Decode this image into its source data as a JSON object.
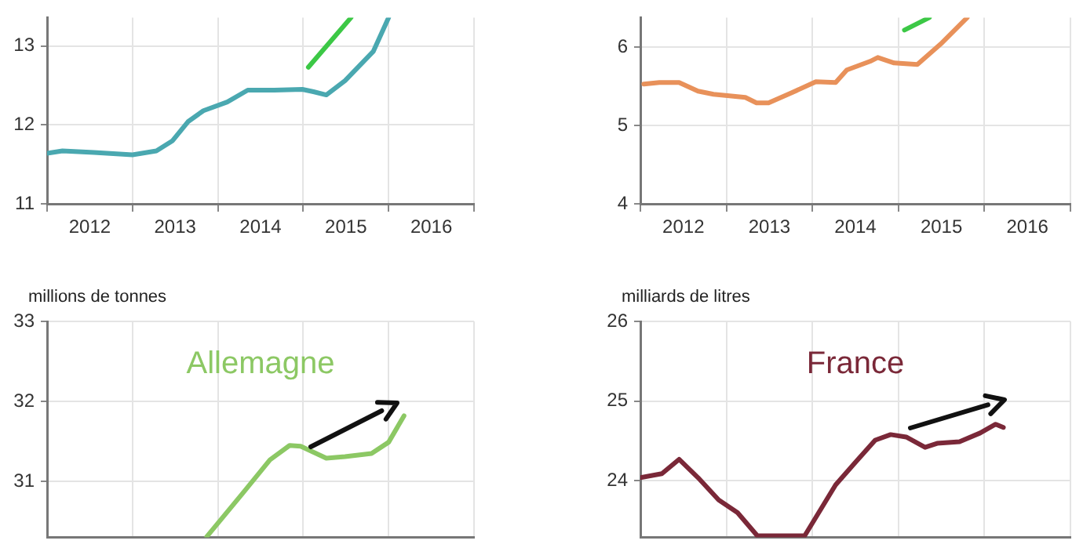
{
  "chart_data": [
    {
      "type": "line",
      "xlim": [
        2012,
        2017
      ],
      "ylim": [
        11,
        13.36
      ],
      "yticks": [
        11,
        12,
        13
      ],
      "xticks": [
        {
          "value": 2012,
          "label": null
        },
        {
          "value": 2012.5,
          "label": "2012"
        },
        {
          "value": 2013,
          "label": null
        },
        {
          "value": 2013.5,
          "label": "2013"
        },
        {
          "value": 2014,
          "label": null
        },
        {
          "value": 2014.5,
          "label": "2014"
        },
        {
          "value": 2015,
          "label": null
        },
        {
          "value": 2015.5,
          "label": "2015"
        },
        {
          "value": 2016,
          "label": null
        },
        {
          "value": 2016.5,
          "label": "2016"
        },
        {
          "value": 2017,
          "label": null
        }
      ],
      "grid": true,
      "legend": false,
      "marker": "none",
      "line_style": "solid",
      "series": [
        {
          "color": "#4aa8b0",
          "x": [
            2012.0,
            2012.18,
            2012.55,
            2013.0,
            2013.28,
            2013.47,
            2013.65,
            2013.83,
            2014.11,
            2014.35,
            2014.66,
            2014.99,
            2015.12,
            2015.27,
            2015.49,
            2015.82,
            2016.0
          ],
          "values": [
            11.64,
            11.67,
            11.65,
            11.62,
            11.67,
            11.8,
            12.04,
            12.18,
            12.29,
            12.44,
            12.44,
            12.45,
            12.42,
            12.38,
            12.56,
            12.93,
            13.36
          ]
        },
        {
          "color": "#3cc846",
          "x": [
            2015.06,
            2015.56
          ],
          "values": [
            12.73,
            13.36
          ]
        }
      ]
    },
    {
      "type": "line",
      "xlim": [
        2012,
        2017
      ],
      "ylim": [
        4,
        6.38
      ],
      "yticks": [
        4,
        5,
        6
      ],
      "xticks": [
        {
          "value": 2012,
          "label": null
        },
        {
          "value": 2012.5,
          "label": "2012"
        },
        {
          "value": 2013,
          "label": null
        },
        {
          "value": 2013.5,
          "label": "2013"
        },
        {
          "value": 2014,
          "label": null
        },
        {
          "value": 2014.5,
          "label": "2014"
        },
        {
          "value": 2015,
          "label": null
        },
        {
          "value": 2015.5,
          "label": "2015"
        },
        {
          "value": 2016,
          "label": null
        },
        {
          "value": 2016.5,
          "label": "2016"
        },
        {
          "value": 2017,
          "label": null
        }
      ],
      "grid": true,
      "legend": false,
      "marker": "none",
      "line_style": "solid",
      "series": [
        {
          "color": "#e8915a",
          "x": [
            2012.04,
            2012.22,
            2012.45,
            2012.67,
            2012.85,
            2013.22,
            2013.35,
            2013.49,
            2013.76,
            2014.04,
            2014.27,
            2014.4,
            2014.67,
            2014.76,
            2014.95,
            2015.22,
            2015.49,
            2015.8
          ],
          "values": [
            5.53,
            5.55,
            5.55,
            5.44,
            5.4,
            5.36,
            5.29,
            5.29,
            5.42,
            5.56,
            5.55,
            5.71,
            5.82,
            5.87,
            5.8,
            5.78,
            6.04,
            6.38
          ]
        },
        {
          "color": "#3cc846",
          "x": [
            2015.07,
            2015.36
          ],
          "values": [
            6.22,
            6.38
          ]
        }
      ]
    },
    {
      "type": "line",
      "ylabel": "millions de tonnes",
      "xlim": [
        2012,
        2017
      ],
      "ylim": [
        30.3,
        33
      ],
      "yticks": [
        31,
        32,
        33
      ],
      "xticks": [
        {
          "value": 2012,
          "label": null
        },
        {
          "value": 2013,
          "label": null
        },
        {
          "value": 2014,
          "label": null
        },
        {
          "value": 2015,
          "label": null
        },
        {
          "value": 2016,
          "label": null
        },
        {
          "value": 2017,
          "label": null
        }
      ],
      "tick_labels": "y",
      "grid": true,
      "legend": false,
      "marker": "none",
      "line_style": "solid",
      "series": [
        {
          "name": "Allemagne",
          "color": "#8cc864",
          "x": [
            2013.87,
            2014.29,
            2014.61,
            2014.84,
            2014.97,
            2015.27,
            2015.49,
            2015.8,
            2016.0,
            2016.18
          ],
          "values": [
            30.31,
            30.85,
            31.27,
            31.45,
            31.44,
            31.29,
            31.31,
            31.35,
            31.49,
            31.82
          ]
        }
      ]
    },
    {
      "type": "line",
      "ylabel": "milliards de litres",
      "xlim": [
        2012,
        2017
      ],
      "ylim": [
        23.29,
        26
      ],
      "yticks": [
        24,
        25,
        26
      ],
      "xticks": [
        {
          "value": 2012,
          "label": null
        },
        {
          "value": 2013,
          "label": null
        },
        {
          "value": 2014,
          "label": null
        },
        {
          "value": 2015,
          "label": null
        },
        {
          "value": 2016,
          "label": null
        },
        {
          "value": 2017,
          "label": null
        }
      ],
      "tick_labels": "y",
      "grid": true,
      "legend": false,
      "marker": "none",
      "line_style": "solid",
      "series": [
        {
          "name": "France",
          "color": "#7a2838",
          "x": [
            2012.0,
            2012.25,
            2012.45,
            2012.67,
            2012.91,
            2013.13,
            2013.36,
            2013.91,
            2014.27,
            2014.49,
            2014.73,
            2014.91,
            2015.09,
            2015.31,
            2015.45,
            2015.71,
            2015.95,
            2016.13,
            2016.22
          ],
          "values": [
            24.04,
            24.09,
            24.27,
            24.04,
            23.76,
            23.6,
            23.31,
            23.31,
            23.95,
            24.22,
            24.51,
            24.58,
            24.55,
            24.42,
            24.47,
            24.49,
            24.6,
            24.71,
            24.67
          ]
        }
      ]
    }
  ]
}
